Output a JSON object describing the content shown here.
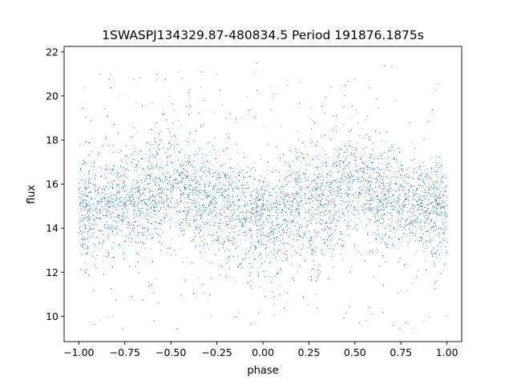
{
  "chart_data": {
    "type": "scatter",
    "title": "1SWASPJ134329.87-480834.5 Period 191876.1875s",
    "xlabel": "phase",
    "ylabel": "flux",
    "xlim": [
      -1.08,
      1.08
    ],
    "ylim": [
      8.85,
      22.25
    ],
    "xticks": [
      -1.0,
      -0.75,
      -0.5,
      -0.25,
      0.0,
      0.25,
      0.5,
      0.75,
      1.0
    ],
    "xtick_labels": [
      "−1.00",
      "−0.75",
      "−0.50",
      "−0.25",
      "0.00",
      "0.25",
      "0.50",
      "0.75",
      "1.00"
    ],
    "yticks": [
      10,
      12,
      14,
      16,
      18,
      20,
      22
    ],
    "ytick_labels": [
      "10",
      "12",
      "14",
      "16",
      "18",
      "20",
      "22"
    ],
    "grid": false,
    "legend": "none",
    "point_color": "#1f77b4",
    "series": [
      {
        "phase_range": [
          -1.0,
          1.0
        ],
        "profile": {
          "phase": [
            -1.0,
            -0.75,
            -0.5,
            -0.25,
            0.0,
            0.25,
            0.5,
            0.75,
            1.0
          ],
          "median_flux": [
            14.9,
            15.2,
            15.8,
            15.3,
            14.4,
            15.3,
            15.8,
            15.2,
            14.9
          ],
          "p05_flux": [
            12.9,
            13.3,
            13.7,
            12.8,
            12.2,
            12.8,
            13.7,
            13.3,
            12.9
          ],
          "p95_flux": [
            16.6,
            17.0,
            18.1,
            17.1,
            16.1,
            17.1,
            18.1,
            17.0,
            16.6
          ]
        },
        "max_flux": 21.5,
        "min_flux": 9.4
      }
    ]
  }
}
